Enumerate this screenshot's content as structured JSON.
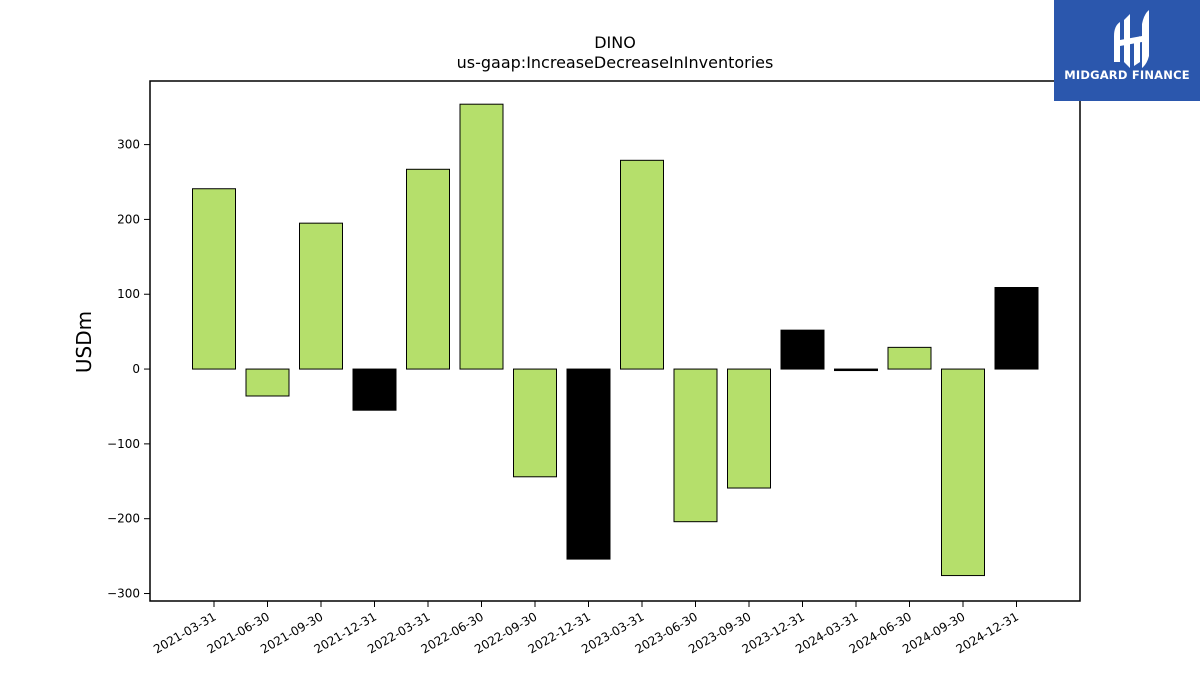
{
  "chart_data": {
    "type": "bar",
    "title": "DINO",
    "subtitle": "us-gaap:IncreaseDecreaseInInventories",
    "xlabel": "",
    "ylabel": "USDm",
    "ylim": [
      -310,
      385
    ],
    "yticks": [
      -300,
      -200,
      -100,
      0,
      100,
      200,
      300
    ],
    "ytick_labels": [
      "−300",
      "−200",
      "−100",
      "0",
      "100",
      "200",
      "300"
    ],
    "categories": [
      "2021-03-31",
      "2021-06-30",
      "2021-09-30",
      "2021-12-31",
      "2022-03-31",
      "2022-06-30",
      "2022-09-30",
      "2022-12-31",
      "2023-03-31",
      "2023-06-30",
      "2023-09-30",
      "2023-12-31",
      "2024-03-31",
      "2024-06-30",
      "2024-09-30",
      "2024-12-31"
    ],
    "values": [
      241,
      -36,
      195,
      -55,
      267,
      354,
      -144,
      -254,
      279,
      -204,
      -159,
      52,
      -2,
      29,
      -276,
      109
    ],
    "bar_colors": [
      "#b5df6b",
      "#b5df6b",
      "#b5df6b",
      "#000000",
      "#b5df6b",
      "#b5df6b",
      "#b5df6b",
      "#000000",
      "#b5df6b",
      "#b5df6b",
      "#b5df6b",
      "#000000",
      "#000000",
      "#b5df6b",
      "#b5df6b",
      "#000000"
    ],
    "grid": false,
    "legend": "none"
  },
  "logo": {
    "text": "MIDGARD FINANCE",
    "background": "#2b57ad",
    "foreground": "#ffffff"
  }
}
